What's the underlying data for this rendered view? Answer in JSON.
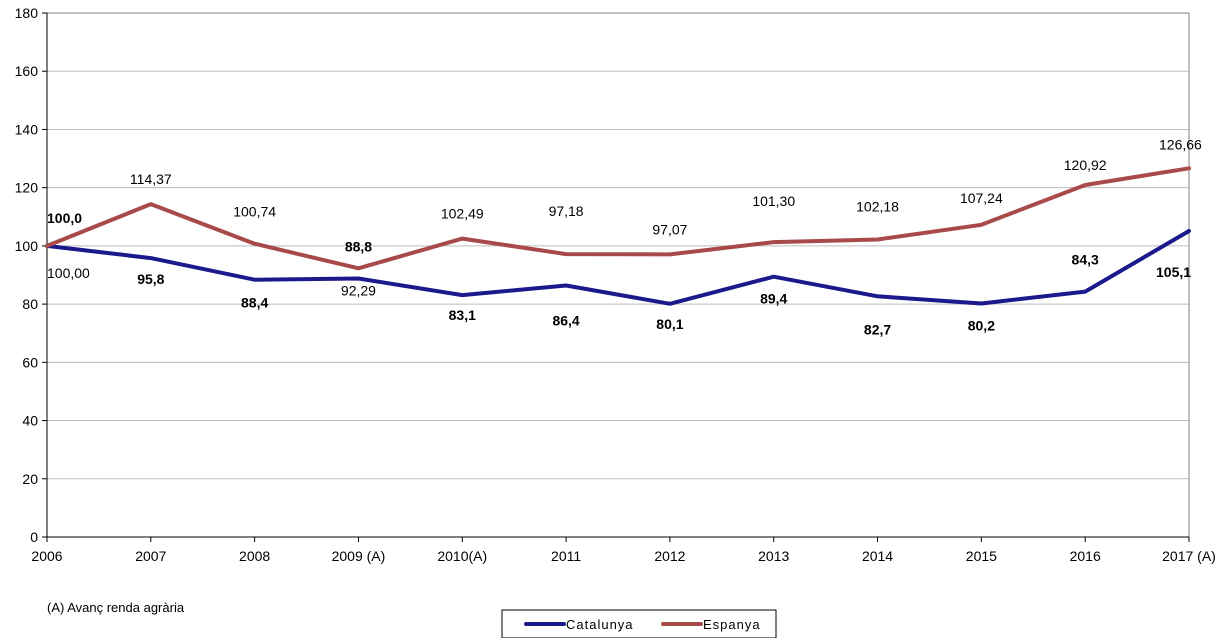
{
  "chart_data": {
    "type": "line",
    "categories": [
      "2006",
      "2007",
      "2008",
      "2009 (A)",
      "2010(A)",
      "2011",
      "2012",
      "2013",
      "2014",
      "2015",
      "2016",
      "2017 (A)"
    ],
    "ylim": [
      0,
      180
    ],
    "yticks": [
      "0",
      "20",
      "40",
      "60",
      "80",
      "100",
      "120",
      "140",
      "160",
      "180"
    ],
    "grid": true,
    "legend_position": "bottom",
    "series": [
      {
        "name": "Catalunya",
        "color": "#1a1a8c",
        "values": [
          100.0,
          95.8,
          88.4,
          88.8,
          83.1,
          86.4,
          80.1,
          89.4,
          82.7,
          80.2,
          84.3,
          105.1
        ],
        "labels": [
          "100,0",
          "95,8",
          "88,4",
          "88,8",
          "83,1",
          "86,4",
          "80,1",
          "89,4",
          "82,7",
          "80,2",
          "84,3",
          "105,1"
        ]
      },
      {
        "name": "Espanya",
        "color": "#a94a4a",
        "values": [
          100.0,
          114.37,
          100.74,
          92.29,
          102.49,
          97.18,
          97.07,
          101.3,
          102.18,
          107.24,
          120.92,
          126.66
        ],
        "labels": [
          "100,00",
          "114,37",
          "100,74",
          "92,29",
          "102,49",
          "97,18",
          "97,07",
          "101,30",
          "102,18",
          "107,24",
          "120,92",
          "126,66"
        ]
      }
    ],
    "note": "(A) Avanç renda agrària"
  }
}
